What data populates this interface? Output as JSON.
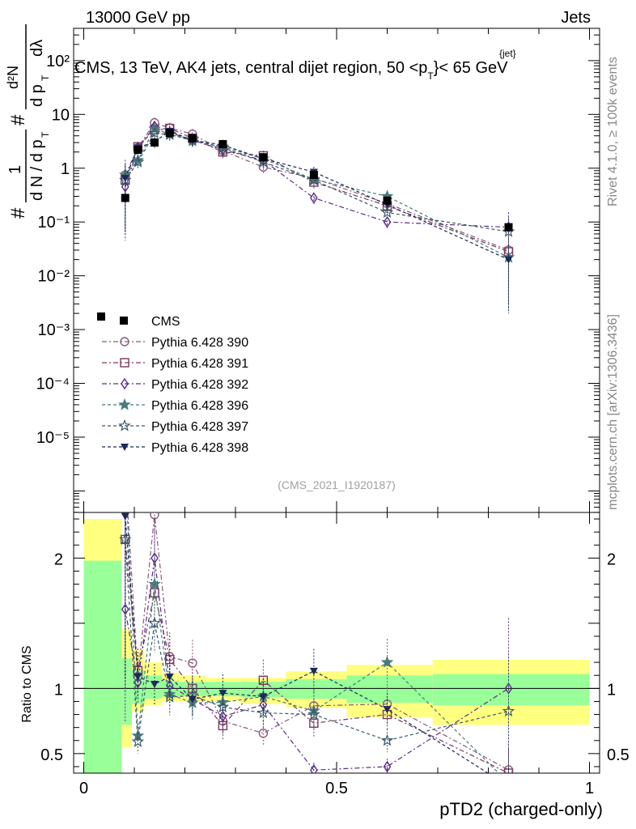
{
  "header": {
    "left": "13000 GeV pp",
    "right": "Jets"
  },
  "title": {
    "main": "CMS, 13 TeV, AK4 jets, central dijet region, 50 <p",
    "sub_T": "T",
    "sup_jet": "{jet}",
    "tail": "}< 65 GeV"
  },
  "side": {
    "rivet": "Rivet 4.1.0, ≥ 100k events",
    "mcplots": "mcplots.cern.ch [arXiv:1306.3436]"
  },
  "watermark": "(CMS_2021_I1920187)",
  "ylabel_top": {
    "hash": "#",
    "one": "1",
    "dN": "d N / d p",
    "T": "T",
    "d2N": "d²N",
    "dpdl": "d p",
    "dl": "dλ"
  },
  "ylabel_bottom": "Ratio to CMS",
  "xlabel": "pTD2 (charged-only)",
  "colors": {
    "data": "#000000",
    "s390": "#8a5a7a",
    "s391": "#7a3a5a",
    "s392": "#5a2a8a",
    "s396": "#4a7a7a",
    "s397": "#3a5a6a",
    "s398": "#1a2a5a",
    "band_yellow": "#ffff80",
    "band_green": "#99ff99"
  },
  "chart_data": {
    "type": "scatter",
    "x_range": [
      -0.02,
      1.02
    ],
    "main_ylim_log10": [
      -6.4,
      2.6
    ],
    "ratio_ylim": [
      0.35,
      2.35
    ],
    "x_ticks": [
      {
        "v": 0,
        "label": "0"
      },
      {
        "v": 0.5,
        "label": "0.5"
      },
      {
        "v": 1,
        "label": "1"
      }
    ],
    "y_ticks_main": [
      {
        "e": 2,
        "label": "10²"
      },
      {
        "e": 1,
        "label": "10"
      },
      {
        "e": 0,
        "label": "1"
      },
      {
        "e": -1,
        "label": "10⁻¹"
      },
      {
        "e": -2,
        "label": "10⁻²"
      },
      {
        "e": -3,
        "label": "10⁻³"
      },
      {
        "e": -4,
        "label": "10⁻⁴"
      },
      {
        "e": -5,
        "label": "10⁻⁵"
      }
    ],
    "y_ticks_ratio": [
      {
        "v": 2,
        "label": "2"
      },
      {
        "v": 1,
        "label": "1"
      },
      {
        "v": 0.5,
        "label": "0.5"
      }
    ],
    "x": [
      0.082,
      0.107,
      0.14,
      0.17,
      0.215,
      0.275,
      0.355,
      0.455,
      0.6,
      0.84
    ],
    "data": {
      "name": "CMS",
      "values": [
        0.28,
        2.2,
        3.0,
        4.5,
        3.6,
        2.8,
        1.6,
        0.75,
        0.25,
        0.08
      ]
    },
    "bands": {
      "edges": [
        0,
        0.075,
        0.095,
        0.12,
        0.155,
        0.19,
        0.24,
        0.31,
        0.4,
        0.52,
        0.69,
        1.0
      ],
      "yellow": [
        [
          0.35,
          2.3
        ],
        [
          0.55,
          1.45
        ],
        [
          0.82,
          1.3
        ],
        [
          0.87,
          1.2
        ],
        [
          0.9,
          1.12
        ],
        [
          0.9,
          1.1
        ],
        [
          0.9,
          1.08
        ],
        [
          0.88,
          1.08
        ],
        [
          0.85,
          1.13
        ],
        [
          0.78,
          1.18
        ],
        [
          0.72,
          1.22
        ]
      ],
      "green": [
        [
          0.35,
          1.98
        ],
        [
          0.72,
          1.23
        ],
        [
          0.88,
          1.14
        ],
        [
          0.92,
          1.1
        ],
        [
          0.94,
          1.06
        ],
        [
          0.94,
          1.05
        ],
        [
          0.94,
          1.05
        ],
        [
          0.93,
          1.05
        ],
        [
          0.92,
          1.07
        ],
        [
          0.89,
          1.1
        ],
        [
          0.87,
          1.11
        ]
      ]
    },
    "series": [
      {
        "name": "Pythia 6.428 390",
        "key": "s390",
        "marker": "circle",
        "dash": "6 3 2 3",
        "values": [
          0.75,
          2.4,
          7.0,
          5.6,
          4.3,
          2.1,
          1.05,
          0.65,
          0.22,
          0.03
        ]
      },
      {
        "name": "Pythia 6.428 391",
        "key": "s391",
        "marker": "square",
        "dash": "6 3 2 3",
        "values": [
          0.6,
          2.5,
          5.2,
          5.5,
          3.6,
          2.0,
          1.7,
          0.55,
          0.2,
          0.028
        ]
      },
      {
        "name": "Pythia 6.428 392",
        "key": "s392",
        "marker": "diamond",
        "dash": "6 3 2 3",
        "values": [
          0.45,
          2.3,
          6.0,
          4.6,
          3.3,
          2.2,
          1.4,
          0.28,
          0.1,
          0.08
        ]
      },
      {
        "name": "Pythia 6.428 396",
        "key": "s396",
        "marker": "star",
        "dash": "4 3",
        "values": [
          0.75,
          1.4,
          5.4,
          4.3,
          3.2,
          2.5,
          1.5,
          0.62,
          0.3,
          0.022
        ]
      },
      {
        "name": "Pythia 6.428 397",
        "key": "s397",
        "marker": "star-open",
        "dash": "4 3",
        "values": [
          0.6,
          1.3,
          4.5,
          4.2,
          3.4,
          2.4,
          1.3,
          0.6,
          0.15,
          0.066
        ]
      },
      {
        "name": "Pythia 6.428 398",
        "key": "s398",
        "marker": "tri-down",
        "dash": "4 3",
        "values": [
          0.65,
          2.4,
          3.1,
          4.9,
          3.3,
          2.7,
          1.5,
          0.85,
          0.21,
          0.02
        ]
      }
    ]
  }
}
